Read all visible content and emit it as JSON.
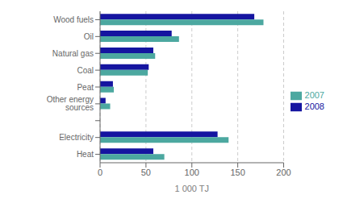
{
  "chart_data": {
    "type": "bar",
    "orientation": "horizontal",
    "xlabel": "1 000 TJ",
    "categories": [
      "Wood fuels",
      "Oil",
      "Natural gas",
      "Coal",
      "Peat",
      "Other energy sources",
      null,
      "Electricity",
      "Heat"
    ],
    "series": [
      {
        "name": "2008",
        "color": "#1515a0",
        "values": [
          168,
          78,
          58,
          53,
          14,
          6,
          0,
          128,
          58
        ]
      },
      {
        "name": "2007",
        "color": "#4ca8a0",
        "values": [
          178,
          86,
          60,
          52,
          15,
          11,
          0,
          140,
          70
        ]
      }
    ],
    "xlim": [
      0,
      200
    ],
    "xticks": [
      0,
      50,
      100,
      150,
      200
    ],
    "grid": true,
    "legend": "right"
  }
}
